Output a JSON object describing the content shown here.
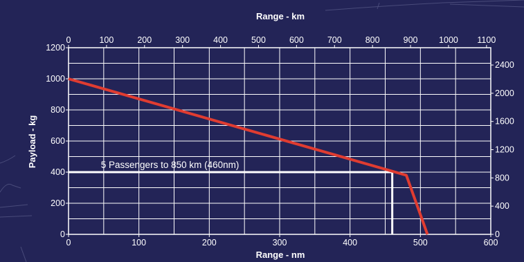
{
  "chart_data": {
    "type": "line",
    "xlabel": "Range - nm",
    "x2label": "Range - km",
    "ylabel": "Payload - kg",
    "xlim": [
      0,
      600
    ],
    "ylim": [
      0,
      1200
    ],
    "x_ticks": [
      0,
      100,
      200,
      300,
      400,
      500,
      600
    ],
    "y_ticks": [
      0,
      200,
      400,
      600,
      800,
      1000,
      1200
    ],
    "x2_ticks": [
      0,
      100,
      200,
      300,
      400,
      500,
      600,
      700,
      800,
      900,
      1000,
      1100
    ],
    "y2_ticks": [
      0,
      400,
      800,
      1200,
      1600,
      2000,
      2400
    ],
    "grid": true,
    "series": [
      {
        "x": [
          0,
          480,
          510
        ],
        "y": [
          1000,
          380,
          0
        ],
        "color": "#e03c31"
      }
    ],
    "annotation": {
      "text": "5 Passengers to 850 km (460nm)",
      "payload": 400,
      "range_nm": 460
    }
  }
}
